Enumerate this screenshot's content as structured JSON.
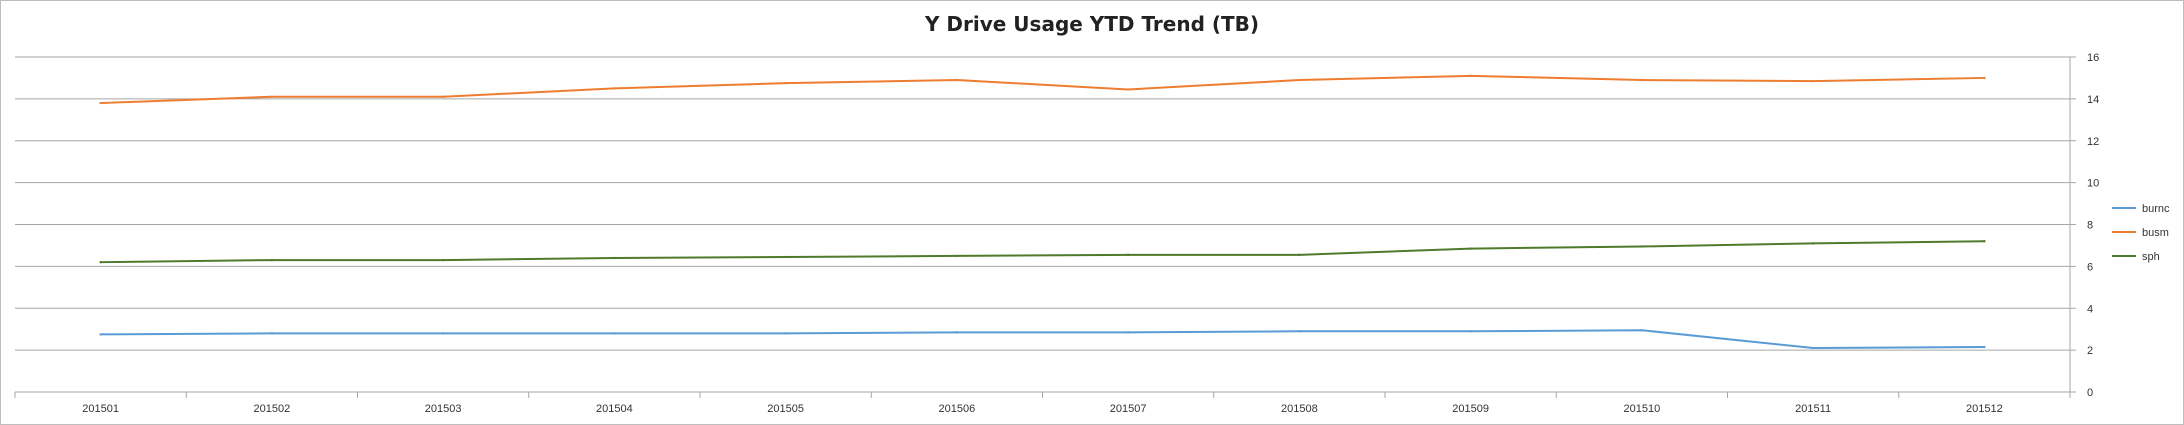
{
  "chart_data": {
    "type": "line",
    "title": "Y Drive Usage YTD Trend (TB)",
    "xlabel": "",
    "ylabel": "",
    "categories": [
      "201501",
      "201502",
      "201503",
      "201504",
      "201505",
      "201506",
      "201507",
      "201508",
      "201509",
      "201510",
      "201511",
      "201512"
    ],
    "ylim": [
      0,
      16
    ],
    "yticks": [
      0,
      2,
      4,
      6,
      8,
      10,
      12,
      14,
      16
    ],
    "y_axis_position": "right",
    "grid": true,
    "legend_position": "right",
    "series": [
      {
        "name": "burnc",
        "color": "#5b9bd5",
        "values": [
          2.75,
          2.8,
          2.8,
          2.8,
          2.8,
          2.85,
          2.85,
          2.9,
          2.9,
          2.95,
          2.1,
          2.15
        ]
      },
      {
        "name": "busm",
        "color": "#ed7d31",
        "values": [
          13.8,
          14.1,
          14.1,
          14.5,
          14.75,
          14.9,
          14.45,
          14.9,
          15.1,
          14.9,
          14.85,
          15.0
        ]
      },
      {
        "name": "sph",
        "color": "#4e7a2c",
        "values": [
          6.2,
          6.3,
          6.3,
          6.4,
          6.45,
          6.5,
          6.55,
          6.55,
          6.85,
          6.95,
          7.1,
          7.2
        ]
      }
    ]
  }
}
